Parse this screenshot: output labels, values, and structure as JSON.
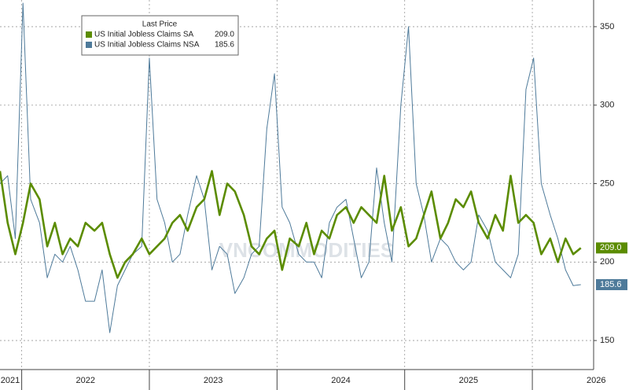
{
  "chart_data": {
    "type": "line",
    "legend_title": "Last Price",
    "watermark": "VNCOMMODITIES",
    "x": [
      2021.83,
      2021.89,
      2021.95,
      2022.01,
      2022.07,
      2022.14,
      2022.2,
      2022.26,
      2022.32,
      2022.38,
      2022.44,
      2022.5,
      2022.57,
      2022.63,
      2022.69,
      2022.75,
      2022.81,
      2022.87,
      2022.94,
      2023.0,
      2023.06,
      2023.12,
      2023.18,
      2023.24,
      2023.3,
      2023.37,
      2023.43,
      2023.49,
      2023.55,
      2023.61,
      2023.67,
      2023.74,
      2023.8,
      2023.86,
      2023.92,
      2023.98,
      2024.04,
      2024.1,
      2024.17,
      2024.23,
      2024.29,
      2024.35,
      2024.41,
      2024.47,
      2024.54,
      2024.6,
      2024.66,
      2024.72,
      2024.78,
      2024.84,
      2024.9,
      2024.97,
      2025.03,
      2025.09,
      2025.15,
      2025.21,
      2025.28,
      2025.34,
      2025.4,
      2025.46,
      2025.52,
      2025.58,
      2025.65,
      2025.71,
      2025.77,
      2025.83,
      2025.89,
      2025.95,
      2026.01,
      2026.07,
      2026.14,
      2026.2,
      2026.26,
      2026.32,
      2026.38
    ],
    "series": [
      {
        "name": "US Initial Jobless Claims NSA",
        "color": "#4e7a9a",
        "last": 185.6,
        "last_label": "185.6",
        "values": [
          250,
          255,
          215,
          365,
          240,
          225,
          190,
          205,
          200,
          210,
          195,
          175,
          175,
          195,
          155,
          185,
          195,
          205,
          210,
          330,
          240,
          225,
          200,
          205,
          230,
          255,
          240,
          195,
          210,
          205,
          180,
          190,
          205,
          210,
          285,
          320,
          235,
          225,
          205,
          200,
          200,
          190,
          225,
          235,
          240,
          215,
          190,
          200,
          260,
          225,
          200,
          300,
          350,
          250,
          230,
          200,
          215,
          210,
          200,
          195,
          200,
          230,
          220,
          200,
          195,
          190,
          205,
          310,
          330,
          250,
          230,
          215,
          195,
          185,
          185.6
        ]
      },
      {
        "name": "US Initial Jobless Claims SA",
        "color": "#5b8c00",
        "last": 209,
        "last_label": "209.0",
        "values": [
          258,
          225,
          205,
          225,
          250,
          240,
          210,
          225,
          205,
          215,
          210,
          225,
          220,
          225,
          205,
          190,
          200,
          205,
          215,
          205,
          210,
          215,
          225,
          230,
          220,
          235,
          240,
          258,
          230,
          250,
          245,
          230,
          210,
          205,
          215,
          220,
          195,
          215,
          210,
          225,
          205,
          220,
          215,
          230,
          235,
          225,
          235,
          230,
          225,
          255,
          220,
          235,
          210,
          215,
          230,
          245,
          215,
          225,
          240,
          235,
          245,
          225,
          215,
          230,
          220,
          255,
          225,
          230,
          225,
          205,
          215,
          200,
          215,
          205,
          209
        ]
      }
    ],
    "xlim": [
      2021.83,
      2026.48
    ],
    "xticks": [
      {
        "value": 2021,
        "label": "2021"
      },
      {
        "value": 2022,
        "label": "2022"
      },
      {
        "value": 2023,
        "label": "2023"
      },
      {
        "value": 2024,
        "label": "2024"
      },
      {
        "value": 2025,
        "label": "2025"
      },
      {
        "value": 2026,
        "label": "2026"
      }
    ],
    "ylim": [
      131.5,
      367
    ],
    "yticks": [
      150,
      200,
      250,
      300,
      350
    ],
    "grid": true
  }
}
